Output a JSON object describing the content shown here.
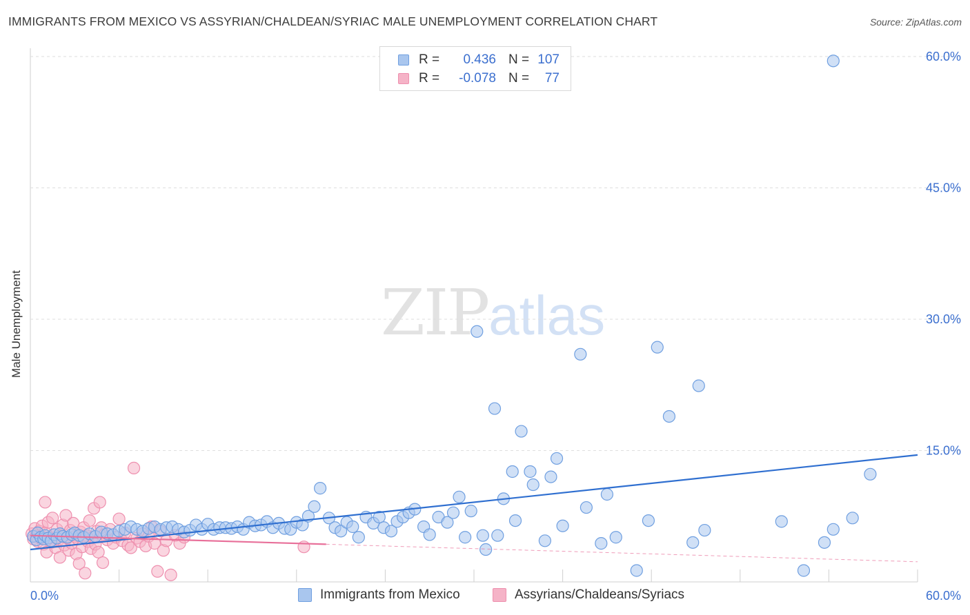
{
  "title": "IMMIGRANTS FROM MEXICO VS ASSYRIAN/CHALDEAN/SYRIAC MALE UNEMPLOYMENT CORRELATION CHART",
  "source": "Source: ZipAtlas.com",
  "watermark": {
    "zip": "ZIP",
    "atlas": "atlas"
  },
  "legend": {
    "rows": [
      {
        "r_label": "R =",
        "r_value": "0.436",
        "n_label": "N =",
        "n_value": "107"
      },
      {
        "r_label": "R =",
        "r_value": "-0.078",
        "n_label": "N =",
        "n_value": "77"
      }
    ]
  },
  "bottom_legend": {
    "series1": "Immigrants from Mexico",
    "series2": "Assyrians/Chaldeans/Syriacs"
  },
  "colors": {
    "blue_fill": "#a9c6ee",
    "blue_stroke": "#6f9fe0",
    "blue_line": "#2f6fd0",
    "pink_fill": "#f5b3c7",
    "pink_stroke": "#ee8fae",
    "pink_line": "#e8709a",
    "axis_text": "#3b6fcf"
  },
  "chart_data": {
    "type": "scatter",
    "title": "IMMIGRANTS FROM MEXICO VS ASSYRIAN/CHALDEAN/SYRIAC MALE UNEMPLOYMENT CORRELATION CHART",
    "xlabel": "",
    "ylabel": "Male Unemployment",
    "xlim": [
      0,
      60
    ],
    "ylim": [
      0,
      62
    ],
    "x_tick_labels": [
      "0.0%",
      "60.0%"
    ],
    "y_ticks": [
      15,
      30,
      45,
      60
    ],
    "y_tick_labels": [
      "15.0%",
      "30.0%",
      "45.0%",
      "60.0%"
    ],
    "grid": true,
    "legend_position": "top-center",
    "series": [
      {
        "name": "Immigrants from Mexico",
        "color": "#6f9fe0",
        "trend": {
          "x": [
            0,
            60
          ],
          "y": [
            3.7,
            14.5
          ],
          "style": "solid"
        },
        "points": [
          [
            0.2,
            5.2
          ],
          [
            0.4,
            4.8
          ],
          [
            0.5,
            5.6
          ],
          [
            0.7,
            5.1
          ],
          [
            0.9,
            4.9
          ],
          [
            1.0,
            5.3
          ],
          [
            1.2,
            5.0
          ],
          [
            1.4,
            4.7
          ],
          [
            1.6,
            5.4
          ],
          [
            1.8,
            5.0
          ],
          [
            2.0,
            5.5
          ],
          [
            2.2,
            5.2
          ],
          [
            2.5,
            5.1
          ],
          [
            2.8,
            5.4
          ],
          [
            3.0,
            5.6
          ],
          [
            3.3,
            5.3
          ],
          [
            3.6,
            5.1
          ],
          [
            4.0,
            5.5
          ],
          [
            4.4,
            5.2
          ],
          [
            4.8,
            5.7
          ],
          [
            5.2,
            5.5
          ],
          [
            5.6,
            5.4
          ],
          [
            6.0,
            5.8
          ],
          [
            6.4,
            6.0
          ],
          [
            6.8,
            6.3
          ],
          [
            7.2,
            6.0
          ],
          [
            7.6,
            5.8
          ],
          [
            8.0,
            6.1
          ],
          [
            8.4,
            6.3
          ],
          [
            8.8,
            6.0
          ],
          [
            9.2,
            6.2
          ],
          [
            9.6,
            6.3
          ],
          [
            10.0,
            6.0
          ],
          [
            10.4,
            5.7
          ],
          [
            10.8,
            5.9
          ],
          [
            11.2,
            6.5
          ],
          [
            11.6,
            6.0
          ],
          [
            12.0,
            6.6
          ],
          [
            12.4,
            6.0
          ],
          [
            12.8,
            6.2
          ],
          [
            13.2,
            6.2
          ],
          [
            13.6,
            6.1
          ],
          [
            14.0,
            6.3
          ],
          [
            14.4,
            6.0
          ],
          [
            14.8,
            6.8
          ],
          [
            15.2,
            6.4
          ],
          [
            15.6,
            6.5
          ],
          [
            16.0,
            6.9
          ],
          [
            16.4,
            6.2
          ],
          [
            16.8,
            6.7
          ],
          [
            17.2,
            6.1
          ],
          [
            17.6,
            6.0
          ],
          [
            18.0,
            6.8
          ],
          [
            18.4,
            6.5
          ],
          [
            18.8,
            7.5
          ],
          [
            19.2,
            8.6
          ],
          [
            19.6,
            10.7
          ],
          [
            20.2,
            7.3
          ],
          [
            20.6,
            6.2
          ],
          [
            21.0,
            5.8
          ],
          [
            21.4,
            6.8
          ],
          [
            21.8,
            6.3
          ],
          [
            22.2,
            5.1
          ],
          [
            22.7,
            7.4
          ],
          [
            23.2,
            6.7
          ],
          [
            23.6,
            7.4
          ],
          [
            23.9,
            6.2
          ],
          [
            24.4,
            5.8
          ],
          [
            24.8,
            6.9
          ],
          [
            25.2,
            7.4
          ],
          [
            25.6,
            7.9
          ],
          [
            26.0,
            8.3
          ],
          [
            26.6,
            6.3
          ],
          [
            27.0,
            5.4
          ],
          [
            27.6,
            7.4
          ],
          [
            28.2,
            6.8
          ],
          [
            28.6,
            7.9
          ],
          [
            29.0,
            9.7
          ],
          [
            29.4,
            5.1
          ],
          [
            29.8,
            8.1
          ],
          [
            30.2,
            28.6
          ],
          [
            30.6,
            5.3
          ],
          [
            30.8,
            3.7
          ],
          [
            31.4,
            19.8
          ],
          [
            31.6,
            5.3
          ],
          [
            32.0,
            9.5
          ],
          [
            32.6,
            12.6
          ],
          [
            32.8,
            7.0
          ],
          [
            33.2,
            17.2
          ],
          [
            33.8,
            12.6
          ],
          [
            34.0,
            11.1
          ],
          [
            34.8,
            4.7
          ],
          [
            35.2,
            12.0
          ],
          [
            35.6,
            14.1
          ],
          [
            36.0,
            6.4
          ],
          [
            37.2,
            26.0
          ],
          [
            37.6,
            8.5
          ],
          [
            38.6,
            4.4
          ],
          [
            39.0,
            10.0
          ],
          [
            39.6,
            5.1
          ],
          [
            41.0,
            1.3
          ],
          [
            41.8,
            7.0
          ],
          [
            42.4,
            26.8
          ],
          [
            43.2,
            18.9
          ],
          [
            44.8,
            4.5
          ],
          [
            45.2,
            22.4
          ],
          [
            45.6,
            5.9
          ]
        ]
      },
      {
        "name": "Assyrians/Chaldeans/Syriacs",
        "color": "#ee8fae",
        "trend": {
          "x": [
            0,
            20
          ],
          "y": [
            5.3,
            4.3
          ],
          "style": "solid",
          "dashed_to": [
            60,
            2.3
          ]
        },
        "points": [
          [
            0.1,
            5.5
          ],
          [
            0.2,
            4.9
          ],
          [
            0.3,
            6.1
          ],
          [
            0.4,
            5.2
          ],
          [
            0.5,
            4.6
          ],
          [
            0.6,
            5.8
          ],
          [
            0.7,
            5.0
          ],
          [
            0.8,
            6.4
          ],
          [
            0.9,
            4.3
          ],
          [
            1.0,
            5.6
          ],
          [
            1.1,
            3.4
          ],
          [
            1.2,
            6.8
          ],
          [
            1.3,
            5.1
          ],
          [
            1.4,
            4.5
          ],
          [
            1.5,
            7.3
          ],
          [
            1.6,
            5.4
          ],
          [
            1.7,
            3.9
          ],
          [
            1.8,
            6.0
          ],
          [
            1.9,
            4.8
          ],
          [
            2.0,
            2.8
          ],
          [
            2.1,
            5.3
          ],
          [
            2.2,
            6.5
          ],
          [
            2.3,
            4.2
          ],
          [
            2.4,
            7.6
          ],
          [
            2.5,
            5.0
          ],
          [
            2.6,
            3.6
          ],
          [
            2.7,
            5.9
          ],
          [
            2.8,
            4.4
          ],
          [
            2.9,
            6.7
          ],
          [
            3.0,
            5.2
          ],
          [
            3.1,
            3.2
          ],
          [
            3.2,
            4.9
          ],
          [
            3.3,
            2.1
          ],
          [
            3.4,
            5.7
          ],
          [
            3.5,
            4.0
          ],
          [
            3.6,
            6.2
          ],
          [
            3.7,
            1.0
          ],
          [
            3.8,
            5.3
          ],
          [
            3.9,
            4.6
          ],
          [
            4.0,
            7.0
          ],
          [
            4.1,
            3.8
          ],
          [
            4.2,
            5.1
          ],
          [
            4.3,
            8.4
          ],
          [
            4.4,
            4.3
          ],
          [
            4.5,
            5.8
          ],
          [
            4.6,
            3.4
          ],
          [
            4.7,
            9.1
          ],
          [
            4.8,
            6.2
          ],
          [
            4.9,
            2.2
          ],
          [
            5.0,
            5.4
          ],
          [
            5.2,
            4.8
          ],
          [
            5.4,
            6.0
          ],
          [
            5.6,
            4.4
          ],
          [
            5.8,
            5.1
          ],
          [
            6.0,
            7.2
          ],
          [
            6.2,
            4.7
          ],
          [
            6.4,
            5.6
          ],
          [
            6.6,
            4.2
          ],
          [
            6.8,
            3.9
          ],
          [
            7.0,
            13.0
          ],
          [
            7.2,
            5.0
          ],
          [
            7.4,
            4.6
          ],
          [
            7.6,
            5.5
          ],
          [
            7.8,
            4.1
          ],
          [
            8.0,
            5.2
          ],
          [
            8.2,
            6.3
          ],
          [
            8.4,
            4.4
          ],
          [
            8.6,
            1.2
          ],
          [
            8.8,
            5.8
          ],
          [
            9.0,
            3.6
          ],
          [
            9.2,
            4.7
          ],
          [
            9.5,
            0.8
          ],
          [
            9.8,
            5.3
          ],
          [
            10.1,
            4.4
          ],
          [
            10.4,
            5.1
          ],
          [
            18.5,
            4.0
          ],
          [
            1.0,
            9.1
          ]
        ]
      }
    ]
  }
}
